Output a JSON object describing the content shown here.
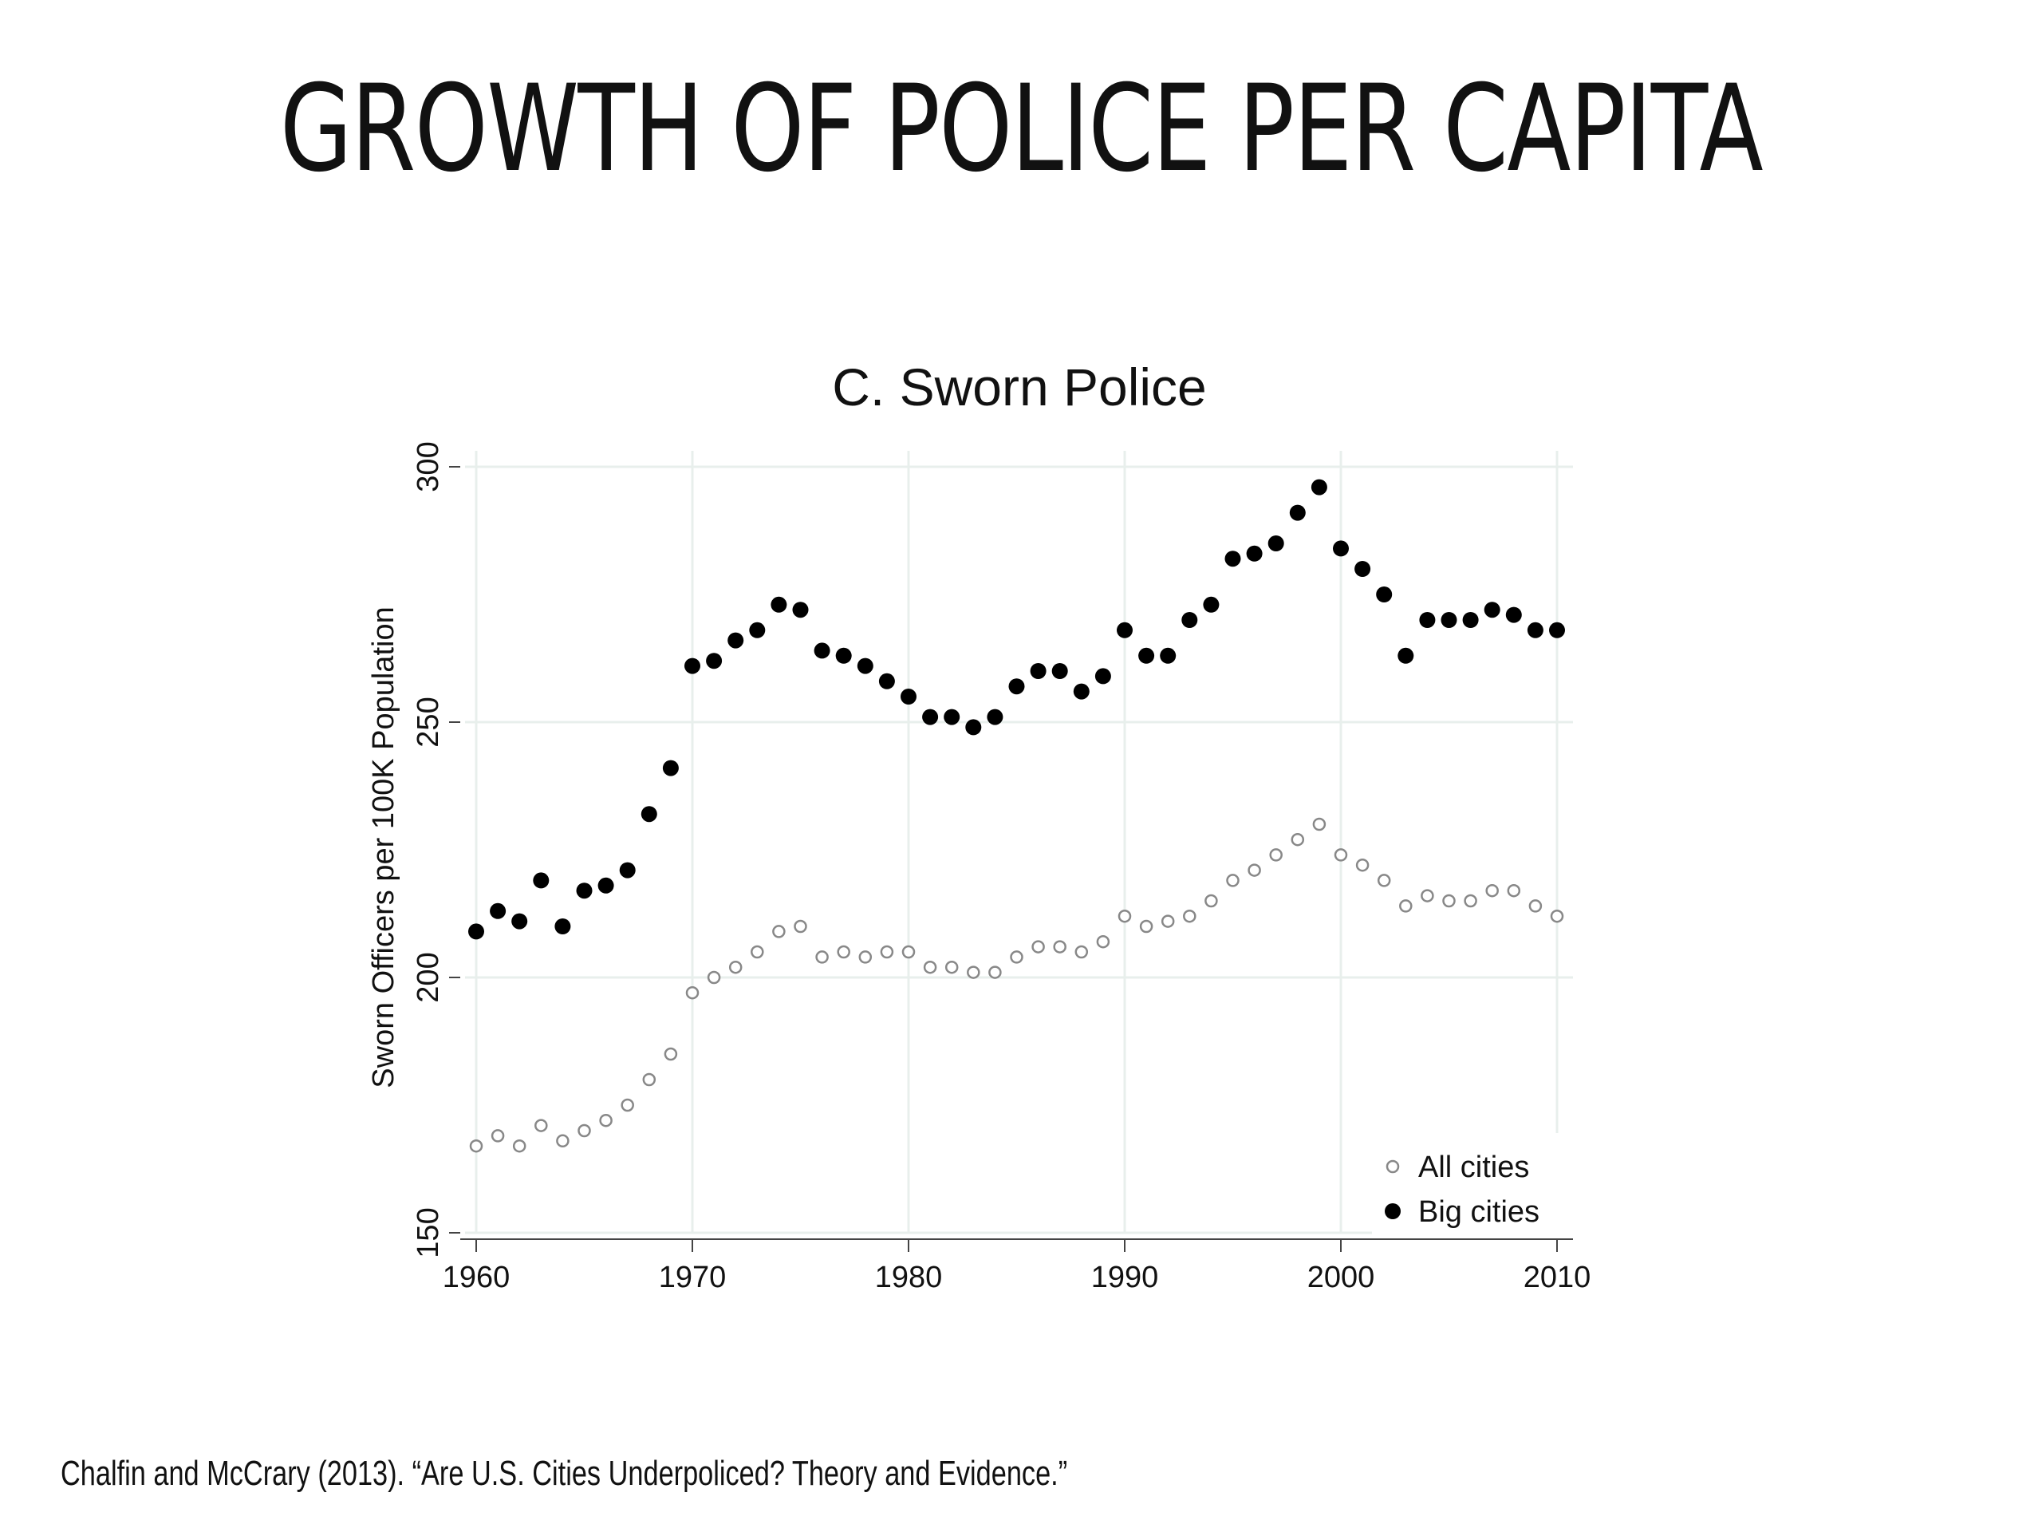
{
  "slide": {
    "title": "GROWTH OF POLICE PER CAPITA",
    "citation": "Chalfin and McCrary (2013). “Are U.S. Cities Underpoliced? Theory and Evidence.”"
  },
  "chart_data": {
    "type": "scatter",
    "title": "C. Sworn Police",
    "xlabel": "",
    "ylabel": "Sworn Officers per 100K Population",
    "xlim": [
      1960,
      2010
    ],
    "ylim": [
      150,
      300
    ],
    "x_ticks": [
      1960,
      1970,
      1980,
      1990,
      2000,
      2010
    ],
    "y_ticks": [
      150,
      200,
      250,
      300
    ],
    "grid": true,
    "legend_position": "bottom-right",
    "x": [
      1960,
      1961,
      1962,
      1963,
      1964,
      1965,
      1966,
      1967,
      1968,
      1969,
      1970,
      1971,
      1972,
      1973,
      1974,
      1975,
      1976,
      1977,
      1978,
      1979,
      1980,
      1981,
      1982,
      1983,
      1984,
      1985,
      1986,
      1987,
      1988,
      1989,
      1990,
      1991,
      1992,
      1993,
      1994,
      1995,
      1996,
      1997,
      1998,
      1999,
      2000,
      2001,
      2002,
      2003,
      2004,
      2005,
      2006,
      2007,
      2008,
      2009,
      2010
    ],
    "series": [
      {
        "name": "All cities",
        "marker": "hollow-circle",
        "color": "#888888",
        "values": [
          167,
          169,
          167,
          171,
          168,
          170,
          172,
          175,
          180,
          185,
          197,
          200,
          202,
          205,
          209,
          210,
          204,
          205,
          204,
          205,
          205,
          202,
          202,
          201,
          201,
          204,
          206,
          206,
          205,
          207,
          212,
          210,
          211,
          212,
          215,
          219,
          221,
          224,
          227,
          230,
          224,
          222,
          219,
          214,
          216,
          215,
          215,
          217,
          217,
          214,
          212
        ]
      },
      {
        "name": "Big cities",
        "marker": "filled-circle",
        "color": "#000000",
        "values": [
          209,
          213,
          211,
          219,
          210,
          217,
          218,
          221,
          232,
          241,
          261,
          262,
          266,
          268,
          273,
          272,
          264,
          263,
          261,
          258,
          255,
          251,
          251,
          249,
          251,
          257,
          260,
          260,
          256,
          259,
          268,
          263,
          263,
          270,
          273,
          282,
          283,
          285,
          291,
          296,
          284,
          280,
          275,
          263,
          270,
          270,
          270,
          272,
          271,
          268,
          268
        ]
      }
    ]
  }
}
